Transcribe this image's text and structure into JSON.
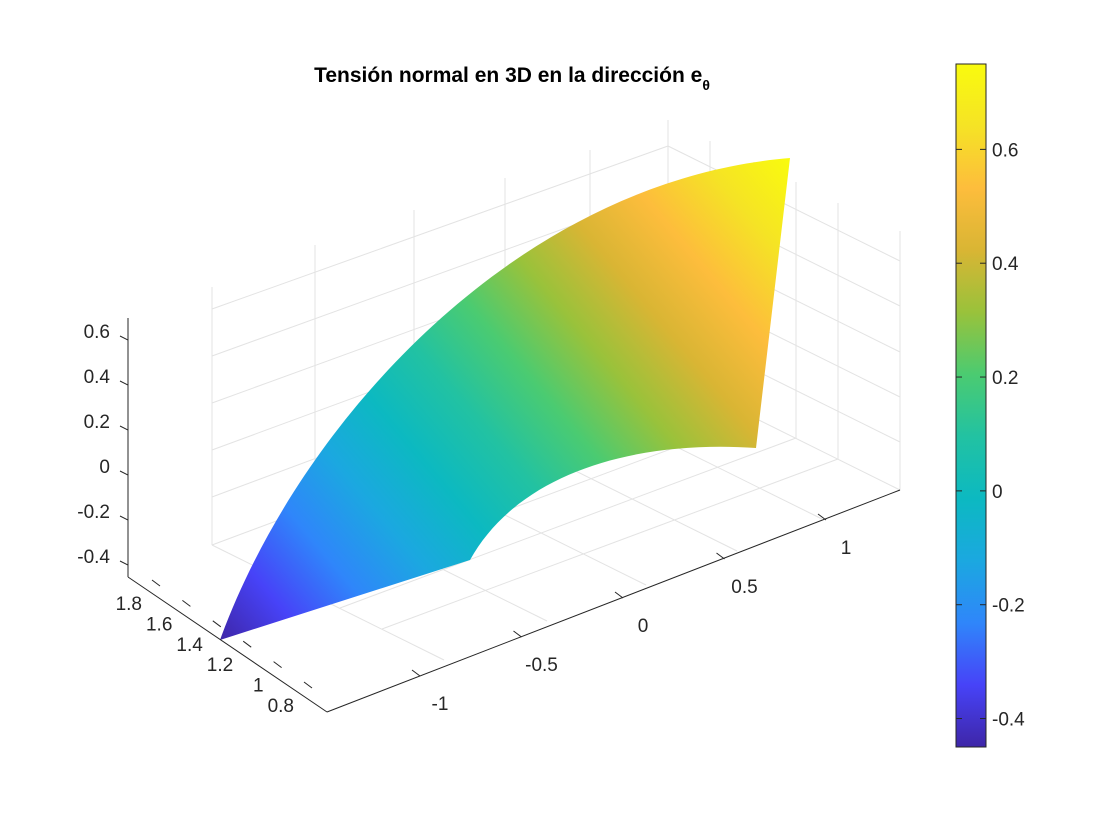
{
  "chart_data": {
    "type": "surface",
    "title": "Tensión normal en 3D en la dirección e",
    "title_subscript": "θ",
    "x_ticks": [
      "-1",
      "-0.5",
      "0",
      "0.5",
      "1"
    ],
    "y_ticks": [
      "0.8",
      "1",
      "1.2",
      "1.4",
      "1.6",
      "1.8"
    ],
    "z_ticks": [
      "-0.4",
      "-0.2",
      "0",
      "0.2",
      "0.4",
      "0.6"
    ],
    "colorbar_ticks": [
      "-0.4",
      "-0.2",
      "0",
      "0.2",
      "0.4",
      "0.6"
    ],
    "colorbar_range": [
      -0.45,
      0.75
    ],
    "colormap": "parula",
    "colormap_stops": [
      "#3e26a8",
      "#4743f8",
      "#2f86fa",
      "#1ba8e0",
      "#0cb9c1",
      "#22c2a2",
      "#4bcb71",
      "#99c23b",
      "#d9b534",
      "#fdbd3c",
      "#f5e325",
      "#f9fb0e"
    ],
    "grid": true,
    "surface": {
      "description_ranges": {
        "x": [
          -1.2,
          1.2
        ],
        "y": [
          0.7,
          1.9
        ],
        "z": [
          -0.45,
          0.75
        ]
      },
      "r_inner": 0.5,
      "r_outer": 1.0
    }
  }
}
